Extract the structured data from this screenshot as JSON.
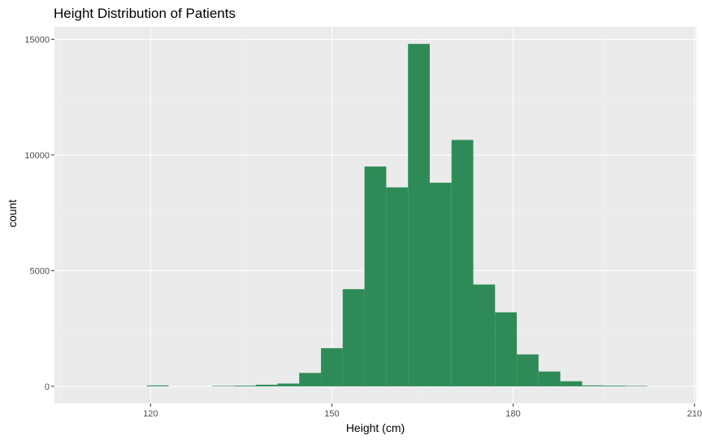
{
  "chart_data": {
    "type": "bar",
    "title": "Height Distribution of Patients",
    "xlabel": "Height (cm)",
    "ylabel": "count",
    "bin_width": 3.6,
    "bins": [
      {
        "x_start": 119.4,
        "count": 40
      },
      {
        "x_start": 130.2,
        "count": 20
      },
      {
        "x_start": 133.8,
        "count": 30
      },
      {
        "x_start": 137.4,
        "count": 70
      },
      {
        "x_start": 141.0,
        "count": 120
      },
      {
        "x_start": 144.6,
        "count": 580
      },
      {
        "x_start": 148.2,
        "count": 1650
      },
      {
        "x_start": 151.8,
        "count": 4200
      },
      {
        "x_start": 155.4,
        "count": 9500
      },
      {
        "x_start": 159.0,
        "count": 8600
      },
      {
        "x_start": 162.6,
        "count": 14800
      },
      {
        "x_start": 166.2,
        "count": 8800
      },
      {
        "x_start": 169.8,
        "count": 10650
      },
      {
        "x_start": 173.4,
        "count": 4400
      },
      {
        "x_start": 177.0,
        "count": 3200
      },
      {
        "x_start": 180.6,
        "count": 1380
      },
      {
        "x_start": 184.2,
        "count": 640
      },
      {
        "x_start": 187.8,
        "count": 220
      },
      {
        "x_start": 191.4,
        "count": 40
      },
      {
        "x_start": 195.0,
        "count": 30
      },
      {
        "x_start": 198.6,
        "count": 20
      }
    ],
    "x_ticks": [
      120,
      150,
      180,
      210
    ],
    "y_ticks": [
      0,
      5000,
      10000,
      15000
    ],
    "xlim": [
      104.1,
      210.3
    ],
    "ylim": [
      -740,
      15540
    ],
    "grid": true,
    "colors": {
      "bar": "#2e8b57",
      "panel": "#ebebeb",
      "grid_major": "#ffffff",
      "grid_minor": "#f2f2f2",
      "tick": "#333333"
    }
  }
}
